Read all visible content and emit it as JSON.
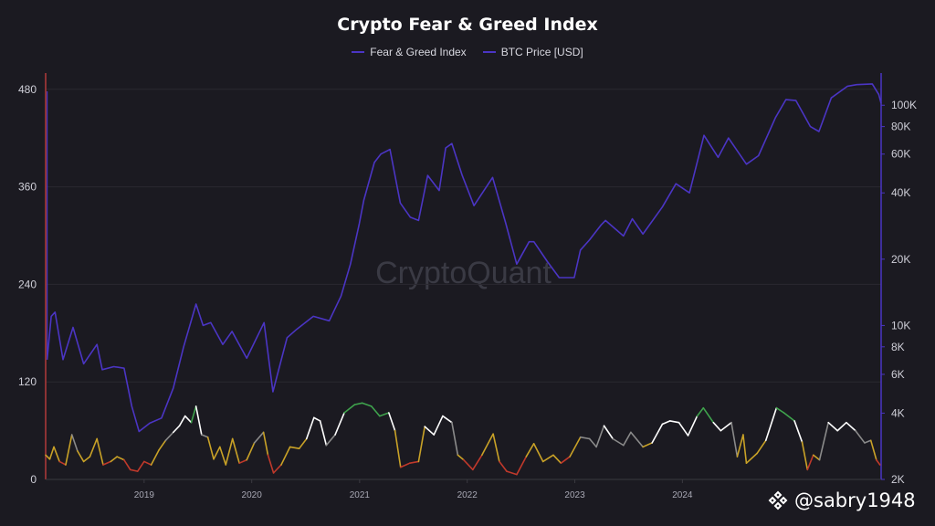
{
  "chart_data": {
    "type": "line",
    "title": "Crypto Fear & Greed Index",
    "legend_placement": "top-center",
    "grid": true,
    "series": [
      {
        "name": "Fear & Greed Index",
        "axis": "left",
        "color_bands": {
          "extreme_fear": "#c0392b",
          "fear": "#c9a227",
          "neutral": "#8a8a8a",
          "greed": "#ffffff",
          "extreme_greed": "#3fa34d"
        },
        "points": [
          [
            "2018-02-01",
            30
          ],
          [
            "2018-02-15",
            25
          ],
          [
            "2018-03-01",
            40
          ],
          [
            "2018-03-20",
            22
          ],
          [
            "2018-04-10",
            18
          ],
          [
            "2018-05-01",
            55
          ],
          [
            "2018-05-20",
            35
          ],
          [
            "2018-06-10",
            22
          ],
          [
            "2018-07-01",
            28
          ],
          [
            "2018-07-25",
            50
          ],
          [
            "2018-08-15",
            18
          ],
          [
            "2018-09-10",
            22
          ],
          [
            "2018-10-01",
            28
          ],
          [
            "2018-10-25",
            24
          ],
          [
            "2018-11-15",
            12
          ],
          [
            "2018-12-10",
            10
          ],
          [
            "2019-01-01",
            22
          ],
          [
            "2019-01-25",
            18
          ],
          [
            "2019-02-20",
            36
          ],
          [
            "2019-03-15",
            48
          ],
          [
            "2019-04-10",
            58
          ],
          [
            "2019-05-01",
            66
          ],
          [
            "2019-05-20",
            78
          ],
          [
            "2019-06-10",
            70
          ],
          [
            "2019-06-26",
            90
          ],
          [
            "2019-07-15",
            55
          ],
          [
            "2019-08-05",
            52
          ],
          [
            "2019-08-25",
            25
          ],
          [
            "2019-09-15",
            40
          ],
          [
            "2019-10-05",
            18
          ],
          [
            "2019-10-28",
            50
          ],
          [
            "2019-11-20",
            20
          ],
          [
            "2019-12-15",
            24
          ],
          [
            "2020-01-10",
            45
          ],
          [
            "2020-02-10",
            58
          ],
          [
            "2020-02-25",
            30
          ],
          [
            "2020-03-15",
            8
          ],
          [
            "2020-04-10",
            18
          ],
          [
            "2020-05-10",
            40
          ],
          [
            "2020-06-10",
            38
          ],
          [
            "2020-07-05",
            50
          ],
          [
            "2020-07-30",
            76
          ],
          [
            "2020-08-20",
            72
          ],
          [
            "2020-09-10",
            42
          ],
          [
            "2020-10-10",
            55
          ],
          [
            "2020-11-10",
            82
          ],
          [
            "2020-12-15",
            92
          ],
          [
            "2021-01-10",
            94
          ],
          [
            "2021-02-10",
            90
          ],
          [
            "2021-03-10",
            78
          ],
          [
            "2021-04-10",
            82
          ],
          [
            "2021-05-01",
            60
          ],
          [
            "2021-05-20",
            15
          ],
          [
            "2021-06-20",
            20
          ],
          [
            "2021-07-20",
            22
          ],
          [
            "2021-08-10",
            65
          ],
          [
            "2021-09-10",
            55
          ],
          [
            "2021-10-10",
            78
          ],
          [
            "2021-11-10",
            70
          ],
          [
            "2021-11-30",
            30
          ],
          [
            "2021-12-20",
            24
          ],
          [
            "2022-01-20",
            12
          ],
          [
            "2022-02-20",
            30
          ],
          [
            "2022-03-30",
            56
          ],
          [
            "2022-04-20",
            22
          ],
          [
            "2022-05-15",
            10
          ],
          [
            "2022-06-18",
            6
          ],
          [
            "2022-07-20",
            28
          ],
          [
            "2022-08-15",
            44
          ],
          [
            "2022-09-15",
            22
          ],
          [
            "2022-10-20",
            30
          ],
          [
            "2022-11-15",
            20
          ],
          [
            "2022-12-15",
            28
          ],
          [
            "2023-01-20",
            52
          ],
          [
            "2023-02-20",
            50
          ],
          [
            "2023-03-15",
            40
          ],
          [
            "2023-04-10",
            66
          ],
          [
            "2023-05-10",
            50
          ],
          [
            "2023-06-15",
            42
          ],
          [
            "2023-07-10",
            58
          ],
          [
            "2023-08-20",
            40
          ],
          [
            "2023-09-20",
            45
          ],
          [
            "2023-10-25",
            68
          ],
          [
            "2023-11-20",
            72
          ],
          [
            "2023-12-20",
            70
          ],
          [
            "2024-01-20",
            54
          ],
          [
            "2024-02-20",
            78
          ],
          [
            "2024-03-12",
            88
          ],
          [
            "2024-04-15",
            70
          ],
          [
            "2024-05-10",
            60
          ],
          [
            "2024-06-15",
            70
          ],
          [
            "2024-07-05",
            28
          ],
          [
            "2024-07-25",
            55
          ],
          [
            "2024-08-05",
            20
          ],
          [
            "2024-09-10",
            32
          ],
          [
            "2024-10-10",
            48
          ],
          [
            "2024-11-15",
            88
          ],
          [
            "2024-12-10",
            82
          ],
          [
            "2025-01-15",
            72
          ],
          [
            "2025-02-10",
            46
          ],
          [
            "2025-02-28",
            12
          ],
          [
            "2025-03-20",
            30
          ],
          [
            "2025-04-10",
            24
          ],
          [
            "2025-05-10",
            70
          ],
          [
            "2025-06-10",
            60
          ],
          [
            "2025-07-10",
            70
          ],
          [
            "2025-08-10",
            60
          ],
          [
            "2025-09-10",
            45
          ],
          [
            "2025-10-01",
            48
          ],
          [
            "2025-10-20",
            24
          ],
          [
            "2025-11-01",
            18
          ]
        ]
      },
      {
        "name": "BTC Price [USD]",
        "axis": "right",
        "color": "#4b35c4",
        "points": [
          [
            "2018-02-06",
            7000
          ],
          [
            "2018-02-20",
            11000
          ],
          [
            "2018-03-05",
            11500
          ],
          [
            "2018-04-01",
            7000
          ],
          [
            "2018-05-05",
            9800
          ],
          [
            "2018-06-10",
            6700
          ],
          [
            "2018-07-25",
            8200
          ],
          [
            "2018-08-12",
            6300
          ],
          [
            "2018-09-20",
            6500
          ],
          [
            "2018-10-25",
            6400
          ],
          [
            "2018-11-20",
            4300
          ],
          [
            "2018-12-15",
            3300
          ],
          [
            "2019-01-20",
            3600
          ],
          [
            "2019-03-01",
            3800
          ],
          [
            "2019-04-10",
            5200
          ],
          [
            "2019-05-15",
            8000
          ],
          [
            "2019-06-26",
            12500
          ],
          [
            "2019-07-20",
            10000
          ],
          [
            "2019-08-15",
            10300
          ],
          [
            "2019-09-25",
            8200
          ],
          [
            "2019-10-26",
            9400
          ],
          [
            "2019-12-15",
            7100
          ],
          [
            "2020-02-12",
            10300
          ],
          [
            "2020-03-13",
            5000
          ],
          [
            "2020-04-30",
            8800
          ],
          [
            "2020-06-01",
            9600
          ],
          [
            "2020-07-28",
            11000
          ],
          [
            "2020-09-20",
            10500
          ],
          [
            "2020-10-30",
            13600
          ],
          [
            "2020-12-01",
            19000
          ],
          [
            "2020-12-31",
            29000
          ],
          [
            "2021-01-15",
            37000
          ],
          [
            "2021-02-20",
            55000
          ],
          [
            "2021-03-14",
            60000
          ],
          [
            "2021-04-14",
            63000
          ],
          [
            "2021-05-19",
            36000
          ],
          [
            "2021-06-22",
            31000
          ],
          [
            "2021-07-20",
            30000
          ],
          [
            "2021-08-20",
            48000
          ],
          [
            "2021-09-28",
            41000
          ],
          [
            "2021-10-20",
            64000
          ],
          [
            "2021-11-10",
            67000
          ],
          [
            "2021-12-15",
            48000
          ],
          [
            "2022-01-24",
            35000
          ],
          [
            "2022-03-28",
            47000
          ],
          [
            "2022-05-12",
            29000
          ],
          [
            "2022-06-18",
            19000
          ],
          [
            "2022-07-30",
            24000
          ],
          [
            "2022-08-15",
            24000
          ],
          [
            "2022-09-30",
            19500
          ],
          [
            "2022-11-09",
            16500
          ],
          [
            "2022-12-30",
            16500
          ],
          [
            "2023-01-20",
            22000
          ],
          [
            "2023-02-20",
            24500
          ],
          [
            "2023-03-30",
            28500
          ],
          [
            "2023-04-15",
            30000
          ],
          [
            "2023-06-15",
            25500
          ],
          [
            "2023-07-15",
            30500
          ],
          [
            "2023-08-20",
            26000
          ],
          [
            "2023-10-25",
            34500
          ],
          [
            "2023-12-10",
            44000
          ],
          [
            "2024-01-25",
            40000
          ],
          [
            "2024-03-14",
            73000
          ],
          [
            "2024-05-01",
            58000
          ],
          [
            "2024-06-05",
            71000
          ],
          [
            "2024-08-05",
            54000
          ],
          [
            "2024-09-15",
            59000
          ],
          [
            "2024-11-12",
            88000
          ],
          [
            "2024-12-17",
            106000
          ],
          [
            "2025-01-20",
            105000
          ],
          [
            "2025-03-10",
            80000
          ],
          [
            "2025-04-08",
            76000
          ],
          [
            "2025-05-20",
            108000
          ],
          [
            "2025-07-14",
            122000
          ],
          [
            "2025-08-14",
            124000
          ],
          [
            "2025-10-06",
            125000
          ],
          [
            "2025-10-28",
            112000
          ],
          [
            "2025-11-05",
            102000
          ]
        ]
      }
    ],
    "x_axis": {
      "type": "date",
      "ticks": [
        "2019",
        "2020",
        "2021",
        "2022",
        "2023",
        "2024"
      ],
      "range": [
        "2018-02-01",
        "2025-11-05"
      ]
    },
    "y_left": {
      "range": [
        0,
        500
      ],
      "ticks": [
        0,
        120,
        240,
        360,
        480
      ]
    },
    "y_right": {
      "scale": "log",
      "range": [
        2000,
        140000
      ],
      "ticks": [
        2000,
        4000,
        6000,
        8000,
        10000,
        20000,
        40000,
        60000,
        80000,
        100000
      ],
      "tick_labels": [
        "2K",
        "4K",
        "6K",
        "8K",
        "10K",
        "20K",
        "40K",
        "60K",
        "80K",
        "100K"
      ]
    },
    "watermark": "CryptoQuant"
  },
  "footer": {
    "handle": "@sabry1948"
  }
}
